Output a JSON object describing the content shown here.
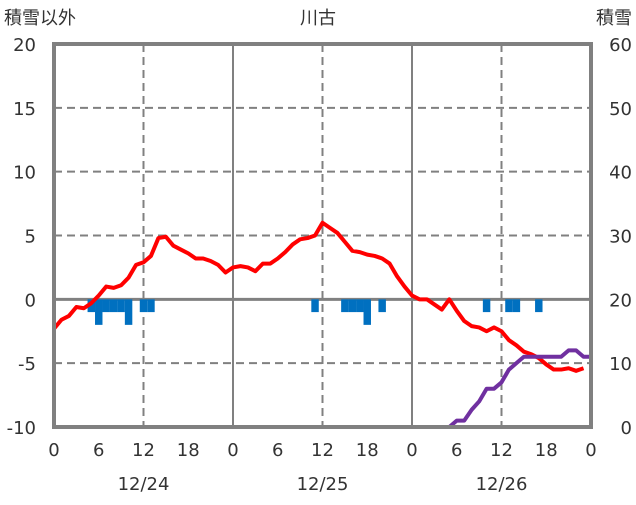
{
  "chart_data": {
    "type": "line",
    "title": "川古",
    "left_axis_label": "積雪以外",
    "right_axis_label": "積雪",
    "left_ylim": [
      -10,
      20
    ],
    "left_ticks": [
      20,
      15,
      10,
      5,
      0,
      -5,
      -10
    ],
    "right_ylim": [
      0,
      60
    ],
    "right_ticks": [
      60,
      50,
      40,
      30,
      20,
      10,
      0
    ],
    "xlim_hours": [
      0,
      72
    ],
    "x_tick_hours": [
      0,
      6,
      12,
      18,
      24,
      30,
      36,
      42,
      48,
      54,
      60,
      66,
      72
    ],
    "x_tick_labels": [
      "0",
      "6",
      "12",
      "18",
      "0",
      "6",
      "12",
      "18",
      "0",
      "6",
      "12",
      "18",
      "0"
    ],
    "date_labels": [
      {
        "hour": 12,
        "label": "12/24"
      },
      {
        "hour": 36,
        "label": "12/25"
      },
      {
        "hour": 60,
        "label": "12/26"
      }
    ],
    "grid": true,
    "series": [
      {
        "name": "temperature",
        "axis": "left",
        "color": "#ff0000",
        "type": "line",
        "values": [
          -2.3,
          -1.6,
          -1.3,
          -0.6,
          -0.7,
          -0.3,
          0.3,
          1.0,
          0.9,
          1.1,
          1.7,
          2.7,
          2.9,
          3.4,
          4.8,
          4.9,
          4.2,
          3.9,
          3.6,
          3.2,
          3.2,
          3.0,
          2.7,
          2.1,
          2.5,
          2.6,
          2.5,
          2.2,
          2.8,
          2.8,
          3.2,
          3.7,
          4.3,
          4.7,
          4.8,
          5.0,
          6.0,
          5.6,
          5.2,
          4.5,
          3.8,
          3.7,
          3.5,
          3.4,
          3.2,
          2.8,
          1.8,
          1.0,
          0.3,
          0.0,
          0.0,
          -0.4,
          -0.8,
          0.0,
          -0.9,
          -1.7,
          -2.1,
          -2.2,
          -2.5,
          -2.2,
          -2.5,
          -3.2,
          -3.6,
          -4.1,
          -4.3,
          -4.6,
          -5.1,
          -5.5,
          -5.5,
          -5.4,
          -5.6,
          -5.4
        ]
      },
      {
        "name": "precipitation",
        "axis": "left",
        "color": "#0070c0",
        "type": "bar",
        "direction": "down",
        "points": [
          [
            5,
            1
          ],
          [
            6,
            2
          ],
          [
            7,
            1
          ],
          [
            8,
            1
          ],
          [
            9,
            1
          ],
          [
            10,
            2
          ],
          [
            12,
            1
          ],
          [
            13,
            1
          ],
          [
            35,
            1
          ],
          [
            39,
            1
          ],
          [
            40,
            1
          ],
          [
            41,
            1
          ],
          [
            42,
            2
          ],
          [
            44,
            1
          ],
          [
            58,
            1
          ],
          [
            61,
            1
          ],
          [
            62,
            1
          ],
          [
            65,
            1
          ]
        ]
      },
      {
        "name": "snow-depth",
        "axis": "right",
        "color": "#7030a0",
        "type": "line",
        "values": [
          0,
          0,
          0,
          0,
          0,
          0,
          0,
          0,
          0,
          0,
          0,
          0,
          0,
          0,
          0,
          0,
          0,
          0,
          0,
          0,
          0,
          0,
          0,
          0,
          0,
          0,
          0,
          0,
          0,
          0,
          0,
          0,
          0,
          0,
          0,
          0,
          0,
          0,
          0,
          0,
          0,
          0,
          0,
          0,
          0,
          0,
          0,
          0,
          0,
          0,
          0,
          0,
          0,
          0,
          1,
          1,
          2.7,
          4,
          6,
          6,
          7,
          9,
          10,
          11,
          11,
          11,
          11,
          11,
          11,
          12,
          12,
          11,
          11
        ]
      }
    ]
  }
}
